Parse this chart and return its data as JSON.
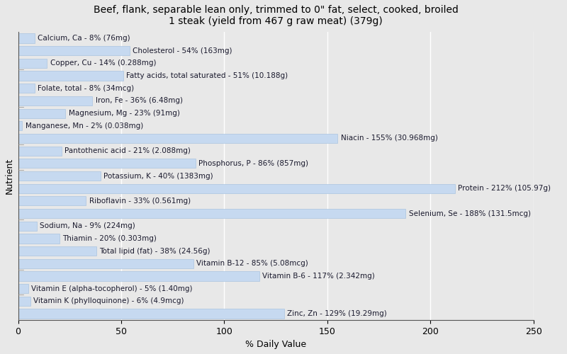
{
  "title": "Beef, flank, separable lean only, trimmed to 0\" fat, select, cooked, broiled\n1 steak (yield from 467 g raw meat) (379g)",
  "xlabel": "% Daily Value",
  "ylabel": "Nutrient",
  "background_color": "#e8e8e8",
  "bar_color": "#c6d9f0",
  "bar_edge_color": "#aac4e0",
  "nutrients": [
    {
      "label": "Calcium, Ca - 8% (76mg)",
      "value": 8
    },
    {
      "label": "Cholesterol - 54% (163mg)",
      "value": 54
    },
    {
      "label": "Copper, Cu - 14% (0.288mg)",
      "value": 14
    },
    {
      "label": "Fatty acids, total saturated - 51% (10.188g)",
      "value": 51
    },
    {
      "label": "Folate, total - 8% (34mcg)",
      "value": 8
    },
    {
      "label": "Iron, Fe - 36% (6.48mg)",
      "value": 36
    },
    {
      "label": "Magnesium, Mg - 23% (91mg)",
      "value": 23
    },
    {
      "label": "Manganese, Mn - 2% (0.038mg)",
      "value": 2
    },
    {
      "label": "Niacin - 155% (30.968mg)",
      "value": 155
    },
    {
      "label": "Pantothenic acid - 21% (2.088mg)",
      "value": 21
    },
    {
      "label": "Phosphorus, P - 86% (857mg)",
      "value": 86
    },
    {
      "label": "Potassium, K - 40% (1383mg)",
      "value": 40
    },
    {
      "label": "Protein - 212% (105.97g)",
      "value": 212
    },
    {
      "label": "Riboflavin - 33% (0.561mg)",
      "value": 33
    },
    {
      "label": "Selenium, Se - 188% (131.5mcg)",
      "value": 188
    },
    {
      "label": "Sodium, Na - 9% (224mg)",
      "value": 9
    },
    {
      "label": "Thiamin - 20% (0.303mg)",
      "value": 20
    },
    {
      "label": "Total lipid (fat) - 38% (24.56g)",
      "value": 38
    },
    {
      "label": "Vitamin B-12 - 85% (5.08mcg)",
      "value": 85
    },
    {
      "label": "Vitamin B-6 - 117% (2.342mg)",
      "value": 117
    },
    {
      "label": "Vitamin E (alpha-tocopherol) - 5% (1.40mg)",
      "value": 5
    },
    {
      "label": "Vitamin K (phylloquinone) - 6% (4.9mcg)",
      "value": 6
    },
    {
      "label": "Zinc, Zn - 129% (19.29mg)",
      "value": 129
    }
  ],
  "xlim": [
    0,
    250
  ],
  "xticks": [
    0,
    50,
    100,
    150,
    200,
    250
  ],
  "title_fontsize": 10,
  "label_fontsize": 7.5,
  "tick_fontsize": 9,
  "axis_label_fontsize": 9
}
